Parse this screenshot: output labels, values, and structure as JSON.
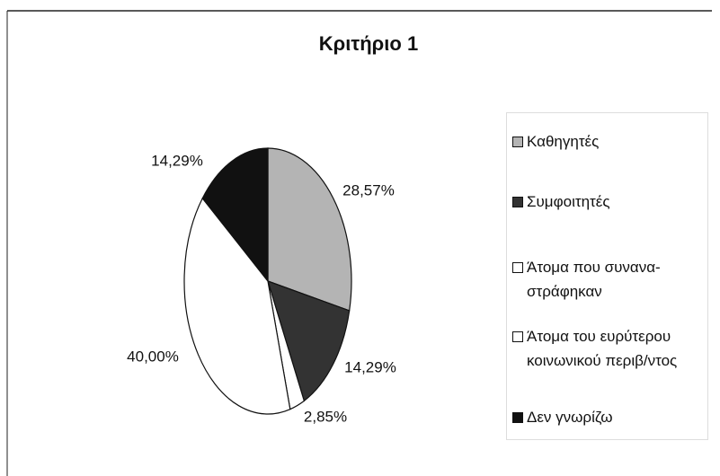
{
  "chart_data": {
    "type": "pie",
    "title": "Κριτήριο 1",
    "categories": [
      "Καθηγητές",
      "Συμφοιτητές",
      "Άτομα που συνανα-στράφηκαν",
      "Άτομα του ευρύτερου κοινωνικού περιβ/ντος",
      "Δεν γνωρίζω"
    ],
    "values": [
      28.57,
      14.29,
      2.85,
      40.0,
      14.29
    ],
    "value_labels": [
      "28,57%",
      "14,29%",
      "2,85%",
      "40,00%",
      "14,29%"
    ],
    "colors": [
      "#b4b4b4",
      "#333333",
      "#ffffff",
      "#ffffff",
      "#111111"
    ],
    "legend": "right"
  }
}
